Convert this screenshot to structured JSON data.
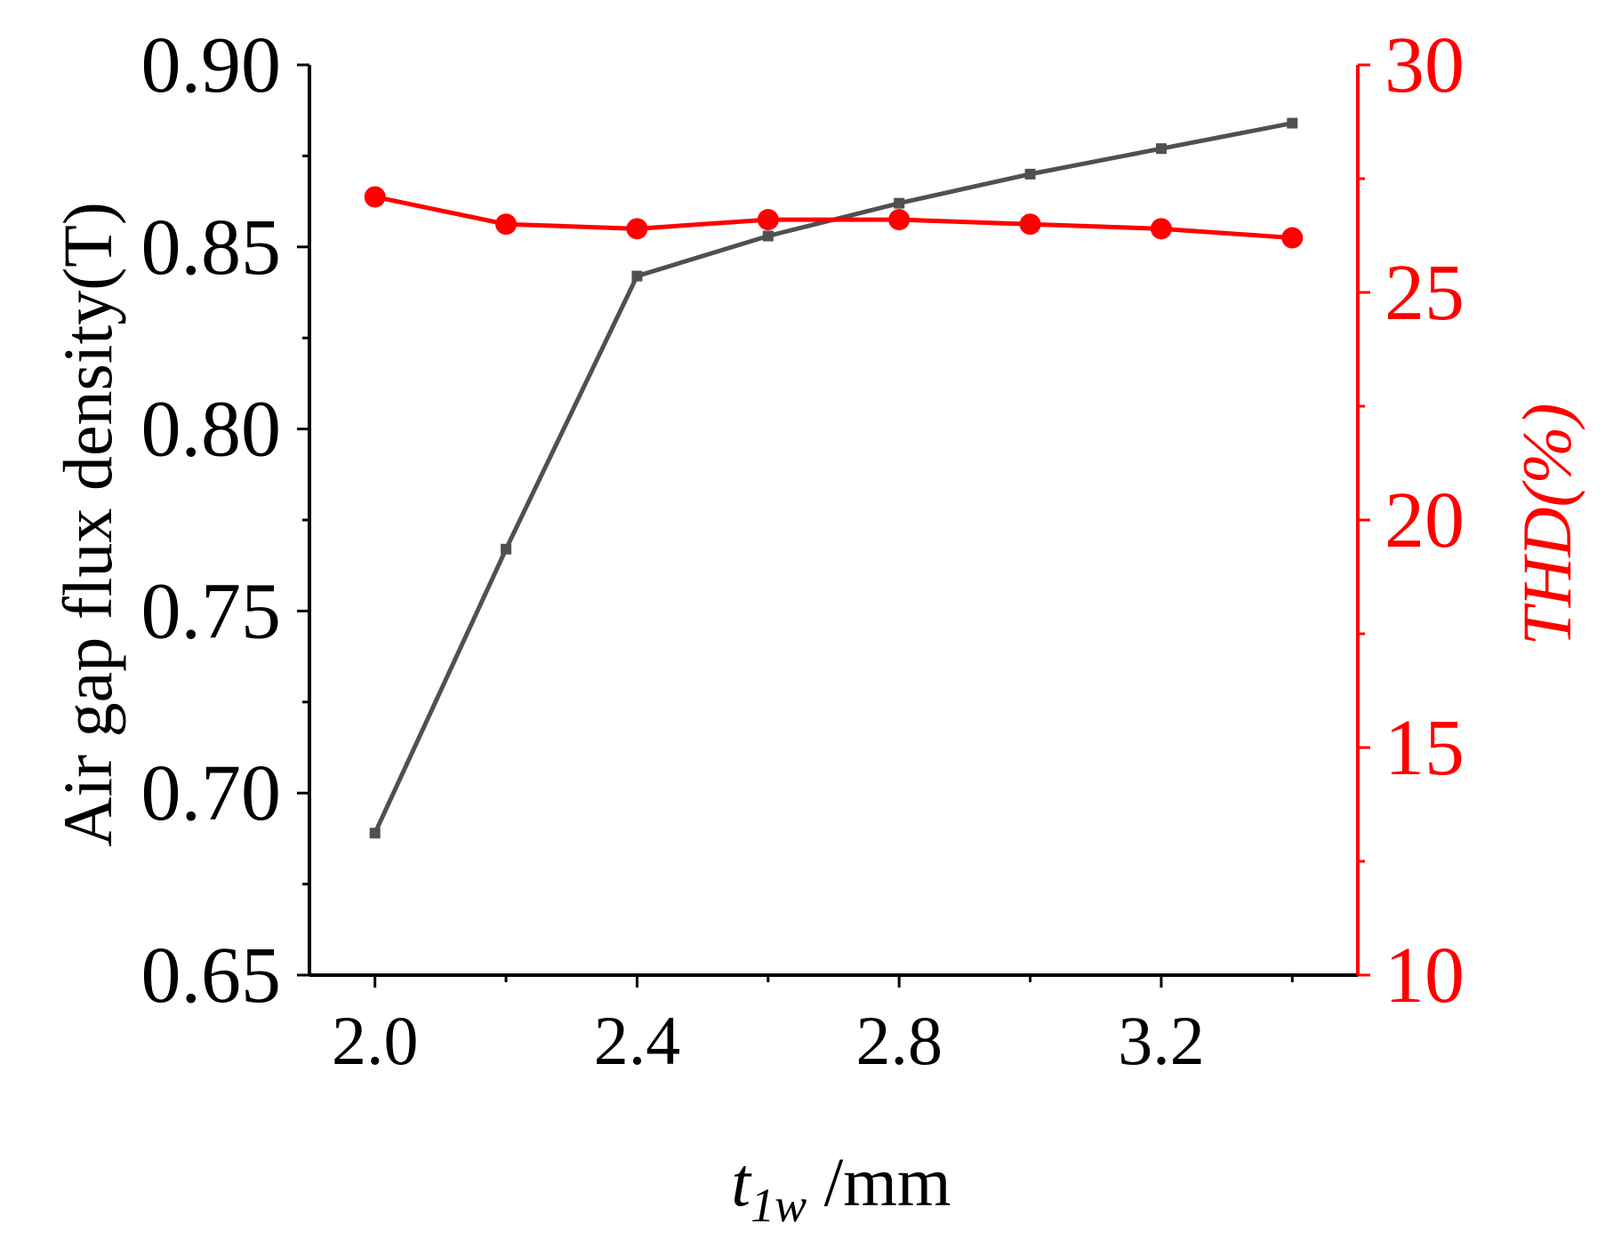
{
  "chart_data": {
    "type": "line",
    "x": [
      2.0,
      2.2,
      2.4,
      2.6,
      2.8,
      3.0,
      3.2,
      3.4
    ],
    "xlabel": {
      "var": "t",
      "sub": "1w",
      "unit": " /mm"
    },
    "xticks": [
      2.0,
      2.4,
      2.8,
      3.2
    ],
    "xlim": [
      1.9,
      3.5
    ],
    "y_left": {
      "label": "Air gap flux density(T)",
      "lim": [
        0.65,
        0.9
      ],
      "ticks": [
        0.65,
        0.7,
        0.75,
        0.8,
        0.85,
        0.9
      ],
      "decimals": 2
    },
    "y_right": {
      "label": "THD(%)",
      "lim": [
        10,
        30
      ],
      "ticks": [
        10,
        15,
        20,
        25,
        30
      ],
      "decimals": 0
    },
    "series": [
      {
        "axis": "left",
        "color": "#505050",
        "marker": "square",
        "values": [
          0.689,
          0.767,
          0.842,
          0.853,
          0.862,
          0.87,
          0.877,
          0.884
        ]
      },
      {
        "axis": "right",
        "color": "#ff0000",
        "marker": "circle",
        "values": [
          27.1,
          26.5,
          26.4,
          26.6,
          26.6,
          26.5,
          26.4,
          26.2
        ]
      }
    ],
    "grid": false,
    "legend": "none"
  }
}
